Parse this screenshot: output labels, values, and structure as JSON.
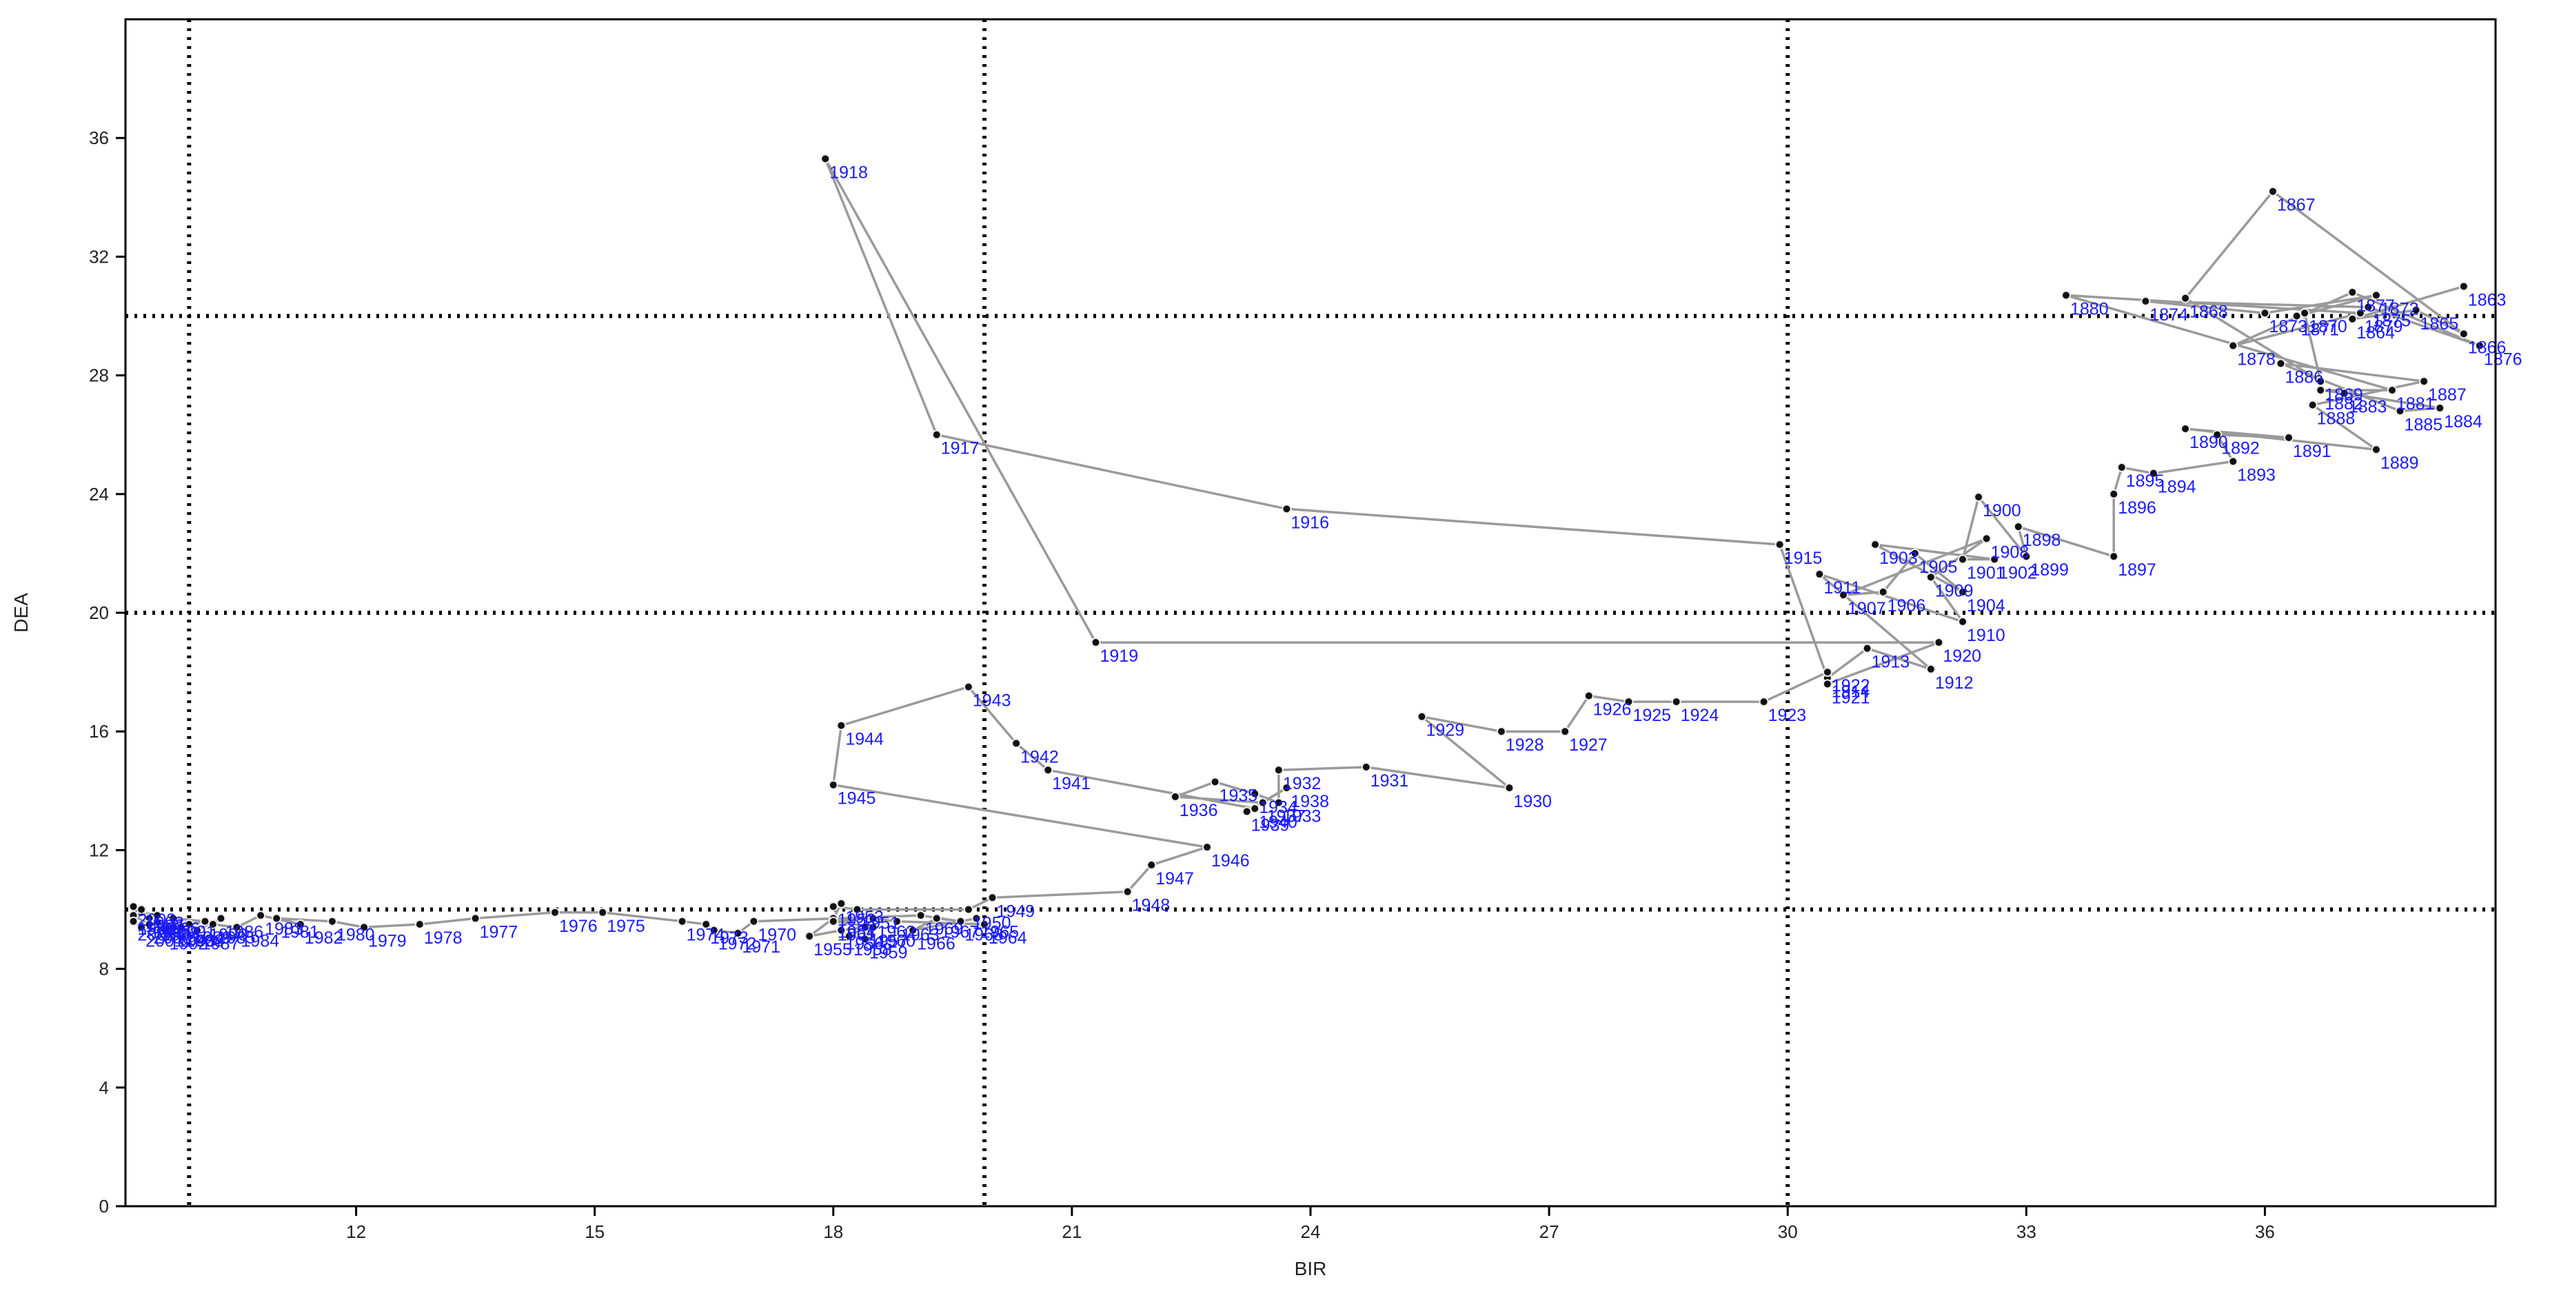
{
  "chart_data": {
    "type": "scatter",
    "title": "",
    "xlabel": "BIR",
    "ylabel": "DEA",
    "xlim": [
      9.1,
      38.9
    ],
    "ylim": [
      0,
      40
    ],
    "x_ticks": [
      12,
      15,
      18,
      21,
      24,
      27,
      30,
      33,
      36
    ],
    "y_ticks": [
      0,
      4,
      8,
      12,
      16,
      20,
      24,
      28,
      32,
      36
    ],
    "grid": false,
    "reference_lines": {
      "x": [
        9.9,
        19.9,
        30
      ],
      "y": [
        10,
        20,
        30
      ]
    },
    "colors": {
      "path": "#9a9a9a",
      "point": "#111111",
      "label": "#1a1aff",
      "reflines": "#000000"
    },
    "series": [
      {
        "points": [
          {
            "label": "1863",
            "x": 38.5,
            "y": 31.0
          },
          {
            "label": "1864",
            "x": 37.1,
            "y": 29.9
          },
          {
            "label": "1865",
            "x": 37.9,
            "y": 30.2
          },
          {
            "label": "1866",
            "x": 38.5,
            "y": 29.4
          },
          {
            "label": "1867",
            "x": 36.1,
            "y": 34.2
          },
          {
            "label": "1868",
            "x": 35.0,
            "y": 30.6
          },
          {
            "label": "1869",
            "x": 36.7,
            "y": 27.8
          },
          {
            "label": "1870",
            "x": 36.5,
            "y": 30.1
          },
          {
            "label": "1871",
            "x": 36.4,
            "y": 30.0
          },
          {
            "label": "1872",
            "x": 37.4,
            "y": 30.7
          },
          {
            "label": "1873",
            "x": 36.0,
            "y": 30.1
          },
          {
            "label": "1874",
            "x": 34.5,
            "y": 30.5
          },
          {
            "label": "1875",
            "x": 37.3,
            "y": 30.3
          },
          {
            "label": "1876",
            "x": 38.7,
            "y": 29.0
          },
          {
            "label": "1877",
            "x": 37.1,
            "y": 30.8
          },
          {
            "label": "1878",
            "x": 35.6,
            "y": 29.0
          },
          {
            "label": "1879",
            "x": 37.2,
            "y": 30.1
          },
          {
            "label": "1880",
            "x": 33.5,
            "y": 30.7
          },
          {
            "label": "1881",
            "x": 37.6,
            "y": 27.5
          },
          {
            "label": "1882",
            "x": 36.7,
            "y": 27.5
          },
          {
            "label": "1883",
            "x": 37.0,
            "y": 27.4
          },
          {
            "label": "1884",
            "x": 38.2,
            "y": 26.9
          },
          {
            "label": "1885",
            "x": 37.7,
            "y": 26.8
          },
          {
            "label": "1886",
            "x": 36.2,
            "y": 28.4
          },
          {
            "label": "1887",
            "x": 38.0,
            "y": 27.8
          },
          {
            "label": "1888",
            "x": 36.6,
            "y": 27.0
          },
          {
            "label": "1889",
            "x": 37.4,
            "y": 25.5
          },
          {
            "label": "1890",
            "x": 35.0,
            "y": 26.2
          },
          {
            "label": "1891",
            "x": 36.3,
            "y": 25.9
          },
          {
            "label": "1892",
            "x": 35.4,
            "y": 26.0
          },
          {
            "label": "1893",
            "x": 35.6,
            "y": 25.1
          },
          {
            "label": "1894",
            "x": 34.6,
            "y": 24.7
          },
          {
            "label": "1895",
            "x": 34.2,
            "y": 24.9
          },
          {
            "label": "1896",
            "x": 34.1,
            "y": 24.0
          },
          {
            "label": "1897",
            "x": 34.1,
            "y": 21.9
          },
          {
            "label": "1898",
            "x": 32.9,
            "y": 22.9
          },
          {
            "label": "1899",
            "x": 33.0,
            "y": 21.9
          },
          {
            "label": "1900",
            "x": 32.4,
            "y": 23.9
          },
          {
            "label": "1901",
            "x": 32.2,
            "y": 21.8
          },
          {
            "label": "1902",
            "x": 32.6,
            "y": 21.8
          },
          {
            "label": "1903",
            "x": 31.1,
            "y": 22.3
          },
          {
            "label": "1904",
            "x": 32.2,
            "y": 20.7
          },
          {
            "label": "1905",
            "x": 31.6,
            "y": 22.0
          },
          {
            "label": "1906",
            "x": 31.2,
            "y": 20.7
          },
          {
            "label": "1907",
            "x": 30.7,
            "y": 20.6
          },
          {
            "label": "1908",
            "x": 32.5,
            "y": 22.5
          },
          {
            "label": "1909",
            "x": 31.8,
            "y": 21.2
          },
          {
            "label": "1910",
            "x": 32.2,
            "y": 19.7
          },
          {
            "label": "1911",
            "x": 30.4,
            "y": 21.3
          },
          {
            "label": "1912",
            "x": 31.8,
            "y": 18.1
          },
          {
            "label": "1913",
            "x": 31.0,
            "y": 18.8
          },
          {
            "label": "1914",
            "x": 30.5,
            "y": 17.8
          },
          {
            "label": "1915",
            "x": 29.9,
            "y": 22.3
          },
          {
            "label": "1916",
            "x": 23.7,
            "y": 23.5
          },
          {
            "label": "1917",
            "x": 19.3,
            "y": 26.0
          },
          {
            "label": "1918",
            "x": 17.9,
            "y": 35.3
          },
          {
            "label": "1919",
            "x": 21.3,
            "y": 19.0
          },
          {
            "label": "1920",
            "x": 31.9,
            "y": 19.0
          },
          {
            "label": "1921",
            "x": 30.5,
            "y": 17.6
          },
          {
            "label": "1922",
            "x": 30.5,
            "y": 18.0
          },
          {
            "label": "1923",
            "x": 29.7,
            "y": 17.0
          },
          {
            "label": "1924",
            "x": 28.6,
            "y": 17.0
          },
          {
            "label": "1925",
            "x": 28.0,
            "y": 17.0
          },
          {
            "label": "1926",
            "x": 27.5,
            "y": 17.2
          },
          {
            "label": "1927",
            "x": 27.2,
            "y": 16.0
          },
          {
            "label": "1928",
            "x": 26.4,
            "y": 16.0
          },
          {
            "label": "1929",
            "x": 25.4,
            "y": 16.5
          },
          {
            "label": "1930",
            "x": 26.5,
            "y": 14.1
          },
          {
            "label": "1931",
            "x": 24.7,
            "y": 14.8
          },
          {
            "label": "1932",
            "x": 23.6,
            "y": 14.7
          },
          {
            "label": "1933",
            "x": 23.6,
            "y": 13.6
          },
          {
            "label": "1934",
            "x": 23.3,
            "y": 13.9
          },
          {
            "label": "1935",
            "x": 22.8,
            "y": 14.3
          },
          {
            "label": "1936",
            "x": 22.3,
            "y": 13.8
          },
          {
            "label": "1937",
            "x": 23.4,
            "y": 13.6
          },
          {
            "label": "1938",
            "x": 23.7,
            "y": 14.1
          },
          {
            "label": "1939",
            "x": 23.2,
            "y": 13.3
          },
          {
            "label": "1940",
            "x": 23.3,
            "y": 13.4
          },
          {
            "label": "1941",
            "x": 20.7,
            "y": 14.7
          },
          {
            "label": "1942",
            "x": 20.3,
            "y": 15.6
          },
          {
            "label": "1943",
            "x": 19.7,
            "y": 17.5
          },
          {
            "label": "1944",
            "x": 18.1,
            "y": 16.2
          },
          {
            "label": "1945",
            "x": 18.0,
            "y": 14.2
          },
          {
            "label": "1946",
            "x": 22.7,
            "y": 12.1
          },
          {
            "label": "1947",
            "x": 22.0,
            "y": 11.5
          },
          {
            "label": "1948",
            "x": 21.7,
            "y": 10.6
          },
          {
            "label": "1949",
            "x": 20.0,
            "y": 10.4
          },
          {
            "label": "1950",
            "x": 19.7,
            "y": 10.0
          },
          {
            "label": "1951",
            "x": 18.3,
            "y": 10.0
          },
          {
            "label": "1952",
            "x": 18.0,
            "y": 10.1
          },
          {
            "label": "1953",
            "x": 18.1,
            "y": 10.2
          },
          {
            "label": "1954",
            "x": 18.0,
            "y": 9.7
          },
          {
            "label": "1955",
            "x": 17.7,
            "y": 9.1
          },
          {
            "label": "1956",
            "x": 18.1,
            "y": 9.3
          },
          {
            "label": "1957",
            "x": 18.4,
            "y": 9.4
          },
          {
            "label": "1958",
            "x": 18.2,
            "y": 9.1
          },
          {
            "label": "1959",
            "x": 18.4,
            "y": 9.0
          },
          {
            "label": "1960",
            "x": 18.5,
            "y": 9.4
          },
          {
            "label": "1961",
            "x": 18.0,
            "y": 9.6
          },
          {
            "label": "1962",
            "x": 18.5,
            "y": 9.7
          },
          {
            "label": "1963",
            "x": 18.8,
            "y": 9.6
          },
          {
            "label": "1964",
            "x": 19.9,
            "y": 9.5
          },
          {
            "label": "1965",
            "x": 19.8,
            "y": 9.7
          },
          {
            "label": "1966",
            "x": 19.0,
            "y": 9.3
          },
          {
            "label": "1967",
            "x": 19.3,
            "y": 9.7
          },
          {
            "label": "1968",
            "x": 19.6,
            "y": 9.6
          },
          {
            "label": "1969",
            "x": 19.1,
            "y": 9.8
          },
          {
            "label": "1970",
            "x": 17.0,
            "y": 9.6
          },
          {
            "label": "1971",
            "x": 16.8,
            "y": 9.2
          },
          {
            "label": "1972",
            "x": 16.5,
            "y": 9.3
          },
          {
            "label": "1973",
            "x": 16.4,
            "y": 9.5
          },
          {
            "label": "1974",
            "x": 16.1,
            "y": 9.6
          },
          {
            "label": "1975",
            "x": 15.1,
            "y": 9.9
          },
          {
            "label": "1976",
            "x": 14.5,
            "y": 9.9
          },
          {
            "label": "1977",
            "x": 13.5,
            "y": 9.7
          },
          {
            "label": "1978",
            "x": 12.8,
            "y": 9.5
          },
          {
            "label": "1979",
            "x": 12.1,
            "y": 9.4
          },
          {
            "label": "1980",
            "x": 11.7,
            "y": 9.6
          },
          {
            "label": "1981",
            "x": 11.0,
            "y": 9.7
          },
          {
            "label": "1982",
            "x": 11.3,
            "y": 9.5
          },
          {
            "label": "1983",
            "x": 10.8,
            "y": 9.8
          },
          {
            "label": "1984",
            "x": 10.5,
            "y": 9.4
          },
          {
            "label": "1985",
            "x": 10.2,
            "y": 9.5
          },
          {
            "label": "1986",
            "x": 10.3,
            "y": 9.7
          },
          {
            "label": "1987",
            "x": 10.0,
            "y": 9.3
          },
          {
            "label": "1988",
            "x": 9.8,
            "y": 9.4
          },
          {
            "label": "1989",
            "x": 9.9,
            "y": 9.5
          },
          {
            "label": "1990",
            "x": 10.1,
            "y": 9.6
          },
          {
            "label": "1991",
            "x": 9.7,
            "y": 9.7
          },
          {
            "label": "1992",
            "x": 9.6,
            "y": 9.3
          },
          {
            "label": "1993",
            "x": 9.7,
            "y": 9.4
          },
          {
            "label": "1994",
            "x": 9.5,
            "y": 9.6
          },
          {
            "label": "1995",
            "x": 9.4,
            "y": 9.7
          },
          {
            "label": "1996",
            "x": 9.5,
            "y": 9.8
          },
          {
            "label": "1997",
            "x": 9.3,
            "y": 9.9
          },
          {
            "label": "1998",
            "x": 9.3,
            "y": 10.0
          },
          {
            "label": "1999",
            "x": 9.2,
            "y": 9.8
          },
          {
            "label": "2000",
            "x": 9.4,
            "y": 9.5
          },
          {
            "label": "2001",
            "x": 9.3,
            "y": 9.4
          },
          {
            "label": "2002",
            "x": 9.2,
            "y": 9.6
          },
          {
            "label": "2003",
            "x": 9.2,
            "y": 10.1
          }
        ]
      }
    ]
  }
}
